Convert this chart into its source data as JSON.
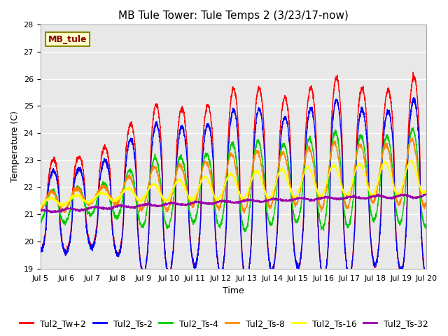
{
  "title": "MB Tule Tower: Tule Temps 2 (3/23/17-now)",
  "xlabel": "Time",
  "ylabel": "Temperature (C)",
  "ylim": [
    19.0,
    28.0
  ],
  "yticks": [
    19.0,
    20.0,
    21.0,
    22.0,
    23.0,
    24.0,
    25.0,
    26.0,
    27.0,
    28.0
  ],
  "x_start": 5.0,
  "x_end": 20.0,
  "xtick_positions": [
    5,
    6,
    7,
    8,
    9,
    10,
    11,
    12,
    13,
    14,
    15,
    16,
    17,
    18,
    19,
    20
  ],
  "xtick_labels": [
    "Jul 5",
    "Jul 6",
    "Jul 7",
    "Jul 8",
    "Jul 9",
    "Jul 10",
    "Jul 11",
    "Jul 12",
    "Jul 13",
    "Jul 14",
    "Jul 15",
    "Jul 16",
    "Jul 17",
    "Jul 18",
    "Jul 19",
    "Jul 20"
  ],
  "series_colors": {
    "Tul2_Tw+2": "#ff0000",
    "Tul2_Ts-2": "#0000ff",
    "Tul2_Ts-4": "#00cc00",
    "Tul2_Ts-8": "#ff8800",
    "Tul2_Ts-16": "#ffff00",
    "Tul2_Ts-32": "#9900aa"
  },
  "legend_label": "MB_tule",
  "legend_bg": "#ffffcc",
  "legend_edge": "#888800",
  "legend_text_color": "#880000",
  "background_color": "#e8e8e8",
  "grid_color": "#ffffff",
  "title_fontsize": 11,
  "axis_fontsize": 9,
  "tick_fontsize": 8,
  "legend_fontsize": 9
}
